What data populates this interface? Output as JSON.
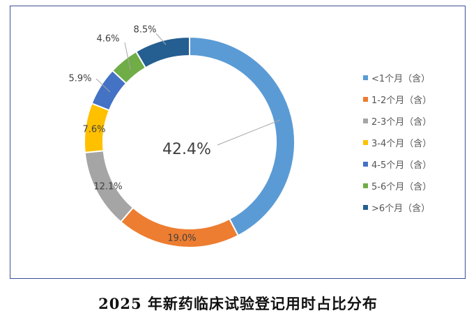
{
  "chart_data": {
    "type": "donut",
    "title": "",
    "series": [
      {
        "name": "<1个月（含）",
        "value": 42.4,
        "label": "42.4%",
        "color": "#5b9bd5"
      },
      {
        "name": "1-2个月（含）",
        "value": 19.0,
        "label": "19.0%",
        "color": "#ed7d31"
      },
      {
        "name": "2-3个月（含）",
        "value": 12.1,
        "label": "12.1%",
        "color": "#a5a5a5"
      },
      {
        "name": "3-4个月（含）",
        "value": 7.6,
        "label": "7.6%",
        "color": "#ffc000"
      },
      {
        "name": "4-5个月（含）",
        "value": 5.9,
        "label": "5.9%",
        "color": "#4472c4"
      },
      {
        "name": "5-6个月（含）",
        "value": 4.6,
        "label": "4.6%",
        "color": "#70ad47"
      },
      {
        "name": ">6个月（含）",
        "value": 8.5,
        "label": "8.5%",
        "color": "#255e91"
      }
    ],
    "legend_position": "right"
  },
  "caption": "2025 年新药临床试验登记用时占比分布"
}
